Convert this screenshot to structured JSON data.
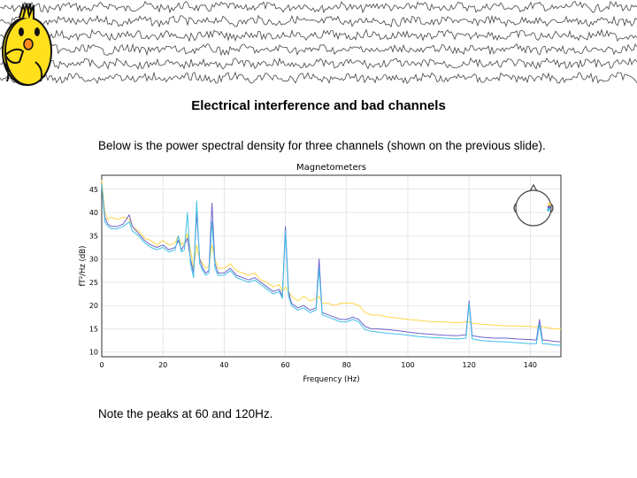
{
  "slide": {
    "title": "Electrical interference and bad channels",
    "intro": "Below is the power spectral density for three channels (shown on the previous slide).",
    "note": "Note the peaks at 60 and 120Hz."
  },
  "banner": {
    "icons": [
      "chick-mascot-icon",
      "chick-mascot-pointing-icon"
    ],
    "trace_color": "#444444"
  },
  "chart_data": {
    "type": "line",
    "title": "Magnetometers",
    "xlabel": "Frequency (Hz)",
    "ylabel": "fT²/Hz (dB)",
    "xlim": [
      0,
      150
    ],
    "ylim": [
      9,
      48
    ],
    "xticks": [
      0,
      20,
      40,
      60,
      80,
      100,
      120,
      140
    ],
    "yticks": [
      10,
      15,
      20,
      25,
      30,
      35,
      40,
      45
    ],
    "grid": true,
    "inset": "sensor-location-head",
    "x": [
      0,
      1,
      2,
      3,
      5,
      7,
      8,
      9,
      10,
      12,
      14,
      16,
      18,
      20,
      22,
      24,
      25,
      26,
      27,
      28,
      29,
      30,
      31,
      32,
      33,
      34,
      35,
      36,
      37,
      38,
      40,
      42,
      44,
      46,
      48,
      50,
      52,
      54,
      56,
      58,
      59,
      60,
      61,
      62,
      64,
      66,
      68,
      70,
      71,
      72,
      74,
      76,
      78,
      80,
      82,
      84,
      86,
      88,
      90,
      94,
      98,
      100,
      104,
      108,
      112,
      116,
      119,
      120,
      121,
      124,
      128,
      132,
      136,
      140,
      142,
      143,
      144,
      146,
      148,
      150
    ],
    "series": [
      {
        "color": "#ffd54a",
        "values": [
          47,
          40,
          38.5,
          39,
          38.5,
          39,
          38.8,
          38.5,
          37,
          36,
          34.5,
          34,
          33,
          34,
          33,
          33.5,
          35,
          33,
          33.5,
          35.5,
          32,
          28,
          33,
          30,
          29,
          28,
          28.5,
          33,
          30,
          28,
          28,
          29,
          27.5,
          27,
          26.5,
          27,
          25.5,
          25,
          24,
          24.5,
          23,
          24,
          23,
          22,
          21,
          22,
          21,
          21.5,
          22,
          20.5,
          20.5,
          20,
          20.5,
          20.5,
          20.5,
          20,
          18.5,
          18,
          18,
          17.5,
          17.2,
          17,
          16.8,
          16.5,
          16.5,
          16.3,
          16.5,
          16.5,
          16.2,
          16,
          15.8,
          15.6,
          15.6,
          15.5,
          15.4,
          15.4,
          15.5,
          15.2,
          15,
          15
        ]
      },
      {
        "color": "#6c63c8",
        "values": [
          46,
          39,
          37.5,
          37,
          37,
          37.5,
          38.5,
          39.5,
          37,
          35.5,
          34,
          33,
          32.5,
          33,
          32,
          32.5,
          34,
          32,
          33,
          34.5,
          30,
          27,
          40,
          30,
          28,
          27,
          27.5,
          42,
          29,
          27,
          27,
          28,
          26.5,
          26,
          25.5,
          26,
          25,
          24,
          23,
          23.5,
          22,
          37,
          23,
          20.5,
          19.5,
          20,
          19,
          19.5,
          30,
          18.5,
          18,
          17.5,
          17,
          17,
          17.5,
          17,
          15.5,
          15,
          15,
          14.8,
          14.5,
          14.3,
          14,
          13.8,
          13.6,
          13.5,
          13.7,
          21,
          13.5,
          13.2,
          13,
          13,
          12.8,
          12.7,
          12.6,
          17,
          12.6,
          12.5,
          12.3,
          12.2
        ]
      },
      {
        "color": "#40c0e8",
        "values": [
          46,
          38,
          37,
          36.5,
          36.5,
          37,
          37.5,
          38,
          36,
          35,
          33.5,
          32.5,
          32,
          32.5,
          31.5,
          32,
          35,
          31.5,
          32,
          40,
          29,
          26,
          42.5,
          29,
          27.5,
          26.5,
          27,
          38,
          28,
          26.5,
          26.5,
          27.5,
          26,
          25.5,
          25,
          25.5,
          24.5,
          23.5,
          22.5,
          23,
          21.5,
          36,
          22,
          20,
          19,
          19.5,
          18.5,
          19,
          28,
          18,
          17.5,
          17,
          16.5,
          16.5,
          17,
          16.5,
          14.8,
          14.5,
          14.3,
          14,
          13.8,
          13.6,
          13.3,
          13.1,
          13,
          12.8,
          13,
          20.5,
          12.8,
          12.5,
          12.3,
          12.2,
          12,
          11.8,
          11.8,
          16,
          11.8,
          11.7,
          11.5,
          11.5
        ]
      }
    ]
  }
}
